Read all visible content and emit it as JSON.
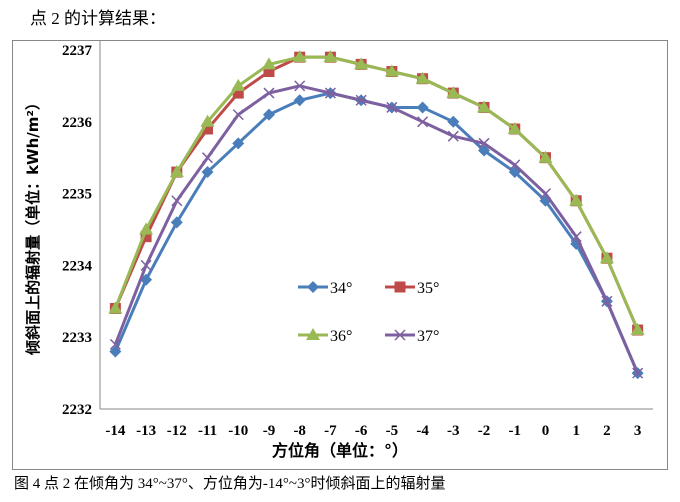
{
  "heading": "点 2 的计算结果：",
  "caption": "图 4 点 2  在倾角为 34°~37°、方位角为-14°~3°时倾斜面上的辐射量",
  "chart_data": {
    "type": "line",
    "xlabel": "方位角（单位：°）",
    "ylabel": "倾斜面上的辐射量（单位：kWh/m²）",
    "categories": [
      "-14",
      "-13",
      "-12",
      "-11",
      "-10",
      "-9",
      "-8",
      "-7",
      "-6",
      "-5",
      "-4",
      "-3",
      "-2",
      "-1",
      "0",
      "1",
      "2",
      "3"
    ],
    "ylim": [
      2232,
      2237
    ],
    "yticks": [
      "2232",
      "2233",
      "2234",
      "2235",
      "2236",
      "2237"
    ],
    "grid": false,
    "legend": "inside-center",
    "series": [
      {
        "name": "34°",
        "color": "#4a7ebb",
        "marker": "diamond",
        "values": [
          2232.8,
          2233.8,
          2234.6,
          2235.3,
          2235.7,
          2236.1,
          2236.3,
          2236.4,
          2236.3,
          2236.2,
          2236.2,
          2236.0,
          2235.6,
          2235.3,
          2234.9,
          2234.3,
          2233.5,
          2232.5
        ]
      },
      {
        "name": "35°",
        "color": "#be4b48",
        "marker": "square",
        "values": [
          2233.4,
          2234.4,
          2235.3,
          2235.9,
          2236.4,
          2236.7,
          2236.9,
          2236.9,
          2236.8,
          2236.7,
          2236.6,
          2236.4,
          2236.2,
          2235.9,
          2235.5,
          2234.9,
          2234.1,
          2233.1
        ]
      },
      {
        "name": "36°",
        "color": "#98b954",
        "marker": "triangle",
        "values": [
          2233.4,
          2234.5,
          2235.3,
          2236.0,
          2236.5,
          2236.8,
          2236.9,
          2236.9,
          2236.8,
          2236.7,
          2236.6,
          2236.4,
          2236.2,
          2235.9,
          2235.5,
          2234.9,
          2234.1,
          2233.1
        ]
      },
      {
        "name": "37°",
        "color": "#7d60a0",
        "marker": "x",
        "values": [
          2232.9,
          2234.0,
          2234.9,
          2235.5,
          2236.1,
          2236.4,
          2236.5,
          2236.4,
          2236.3,
          2236.2,
          2236.0,
          2235.8,
          2235.7,
          2235.4,
          2235.0,
          2234.4,
          2233.5,
          2232.5
        ]
      }
    ]
  }
}
